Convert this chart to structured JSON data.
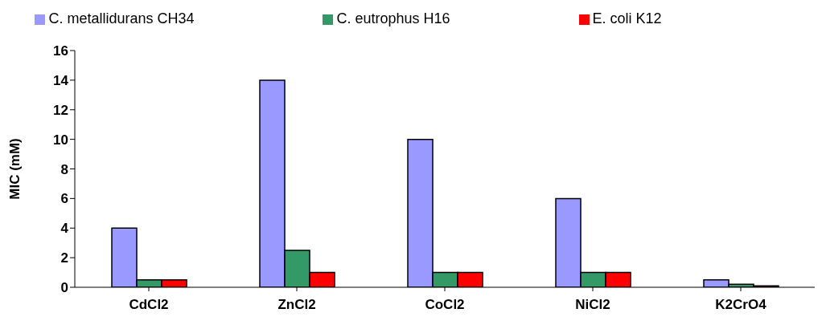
{
  "chart_data": {
    "type": "bar",
    "ylabel": "MIC (mM)",
    "categories": [
      "CdCl2",
      "ZnCl2",
      "CoCl2",
      "NiCl2",
      "K2CrO4"
    ],
    "series": [
      {
        "name": "C. metallidurans CH34",
        "color": "#9999ff",
        "values": [
          4,
          14,
          10,
          6,
          0.5
        ]
      },
      {
        "name": "C. eutrophus H16",
        "color": "#339966",
        "values": [
          0.5,
          2.5,
          1,
          1,
          0.2
        ]
      },
      {
        "name": "E. coli K12",
        "color": "#ff0000",
        "values": [
          0.5,
          1,
          1,
          1,
          0.1
        ]
      }
    ],
    "ylim": [
      0,
      16
    ],
    "yticks": [
      0,
      2,
      4,
      6,
      8,
      10,
      12,
      14,
      16
    ],
    "grid": false,
    "legend": "top"
  }
}
